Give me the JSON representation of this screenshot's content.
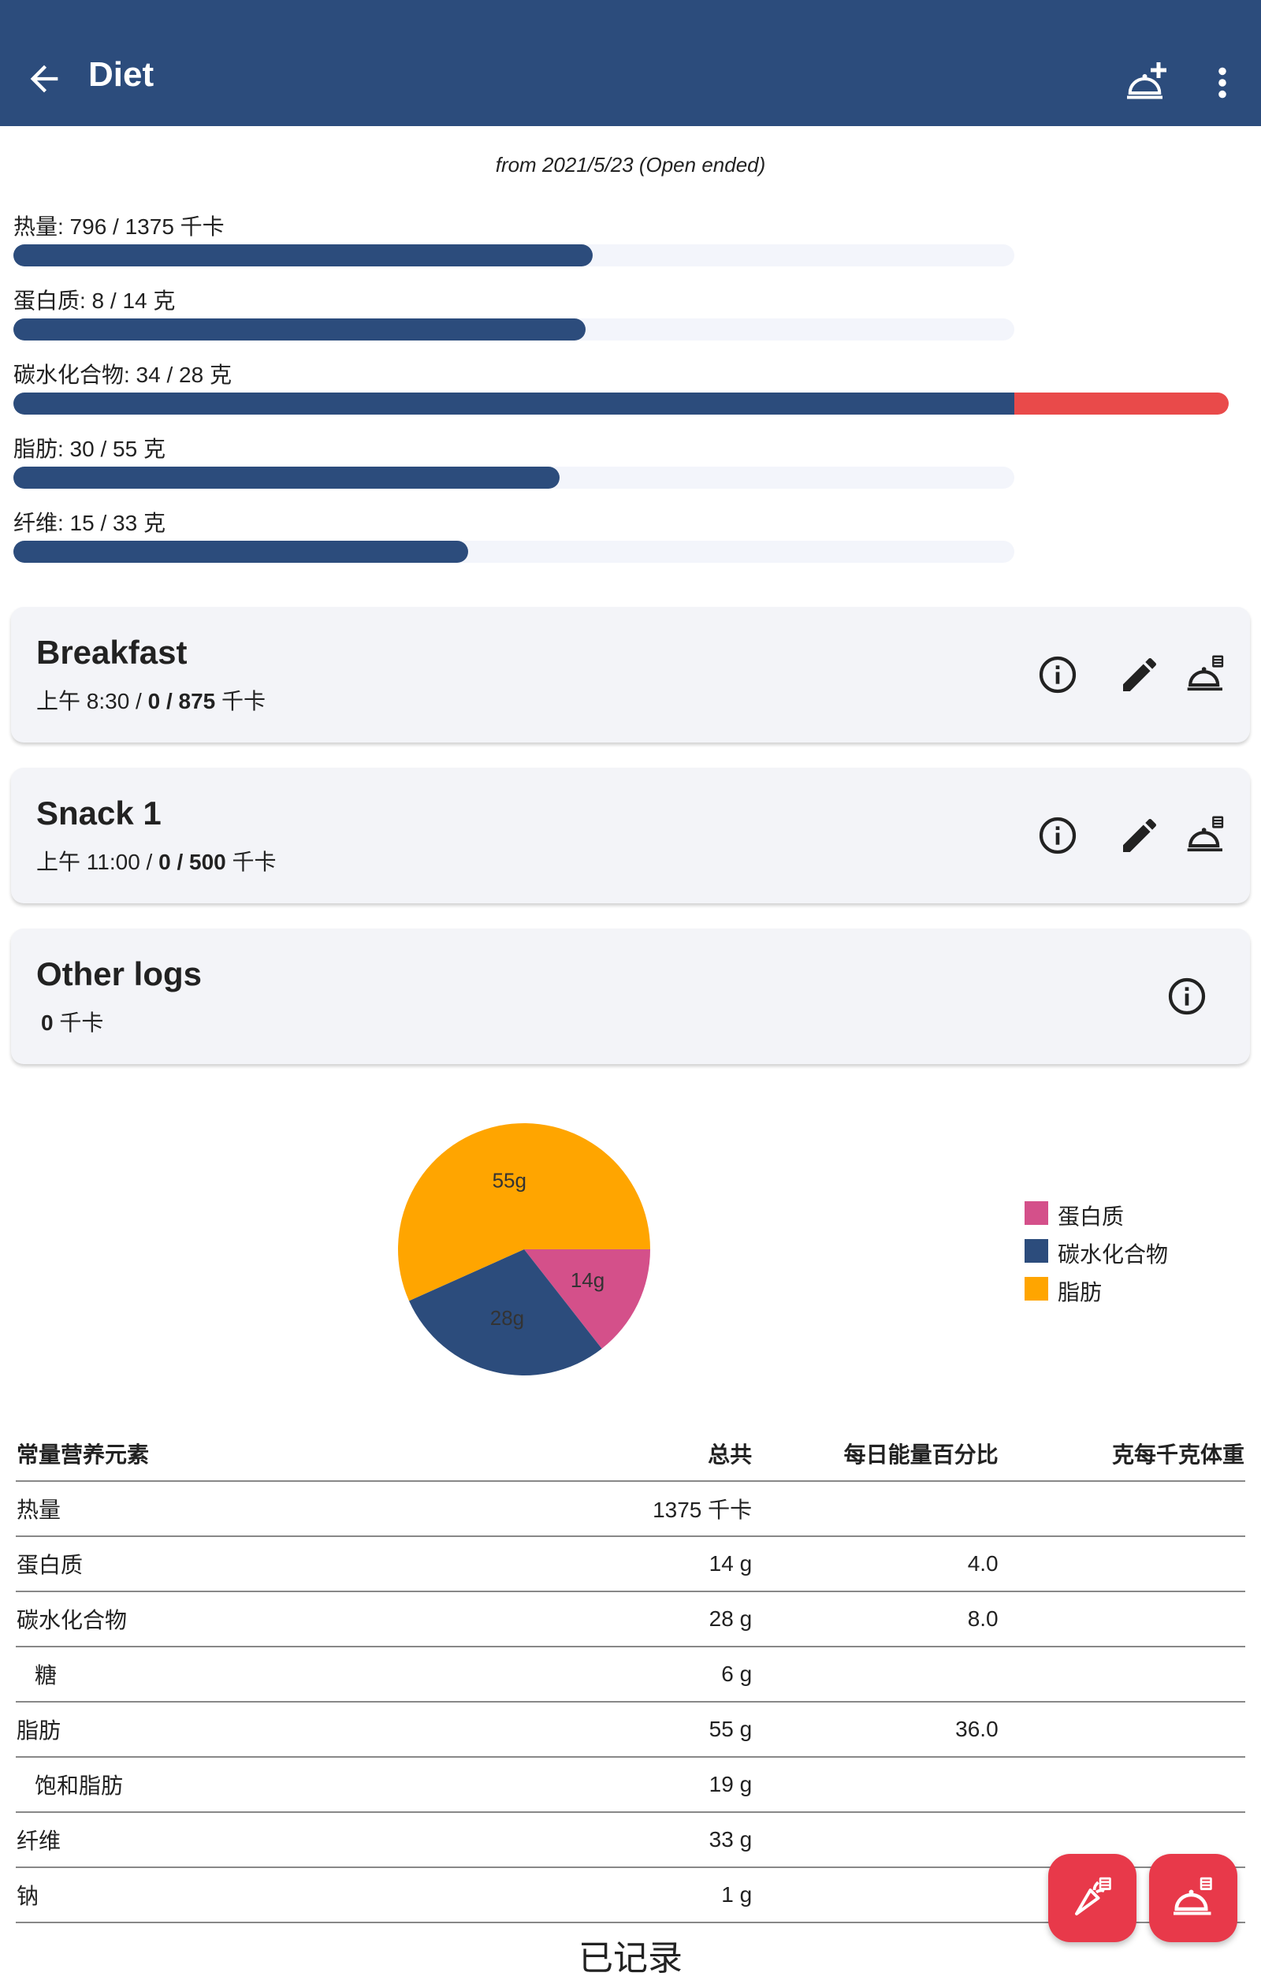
{
  "appbar": {
    "title": "Diet",
    "back_icon": "arrow-back-icon",
    "add_meal_icon": "add-meal-icon",
    "more_icon": "more-vert-icon",
    "background": "#2c4c7c"
  },
  "period": "from 2021/5/23 (Open ended)",
  "nutrients": [
    {
      "label": "热量: 796 / 1375 千卡",
      "value": 796,
      "goal": 1375
    },
    {
      "label": "蛋白质: 8 / 14 克",
      "value": 8,
      "goal": 14
    },
    {
      "label": "碳水化合物: 34 / 28 克",
      "value": 34,
      "goal": 28
    },
    {
      "label": "脂肪: 30 / 55 克",
      "value": 30,
      "goal": 55
    },
    {
      "label": "纤维: 15 / 33 克",
      "value": 15,
      "goal": 33
    }
  ],
  "meals": [
    {
      "title": "Breakfast",
      "time": "上午 8:30 /",
      "energy": "0 / 875",
      "unit": "千卡"
    },
    {
      "title": "Snack 1",
      "time": "上午 11:00 /",
      "energy": "0 / 500",
      "unit": "千卡"
    }
  ],
  "other_logs": {
    "title": "Other logs",
    "energy": "0",
    "unit": "千卡"
  },
  "colors": {
    "protein": "#d4508a",
    "carbs": "#2c4c7c",
    "fat": "#ffa500",
    "over": "#e94a4a",
    "fab": "#e8394a"
  },
  "chart_data": {
    "type": "pie",
    "slices": [
      {
        "name": "蛋白质",
        "value": 14,
        "label": "14g"
      },
      {
        "name": "碳水化合物",
        "value": 28,
        "label": "28g"
      },
      {
        "name": "脂肪",
        "value": 55,
        "label": "55g"
      }
    ],
    "legend_position": "right"
  },
  "table": {
    "headers": [
      "常量营养元素",
      "总共",
      "每日能量百分比",
      "克每千克体重"
    ],
    "rows": [
      {
        "name": "热量",
        "total": "1375 千卡",
        "pct": "",
        "gkg": "",
        "indent": false
      },
      {
        "name": "蛋白质",
        "total": "14 g",
        "pct": "4.0",
        "gkg": "",
        "indent": false
      },
      {
        "name": "碳水化合物",
        "total": "28 g",
        "pct": "8.0",
        "gkg": "",
        "indent": false
      },
      {
        "name": "糖",
        "total": "6 g",
        "pct": "",
        "gkg": "",
        "indent": true
      },
      {
        "name": "脂肪",
        "total": "55 g",
        "pct": "36.0",
        "gkg": "",
        "indent": false
      },
      {
        "name": "饱和脂肪",
        "total": "19 g",
        "pct": "",
        "gkg": "",
        "indent": true
      },
      {
        "name": "纤维",
        "total": "33 g",
        "pct": "",
        "gkg": "",
        "indent": false
      },
      {
        "name": "钠",
        "total": "1 g",
        "pct": "",
        "gkg": "",
        "indent": false
      }
    ]
  },
  "fabs": [
    {
      "icon": "log-ingredient-icon"
    },
    {
      "icon": "log-meal-icon"
    }
  ],
  "bottom_text": "已记录"
}
